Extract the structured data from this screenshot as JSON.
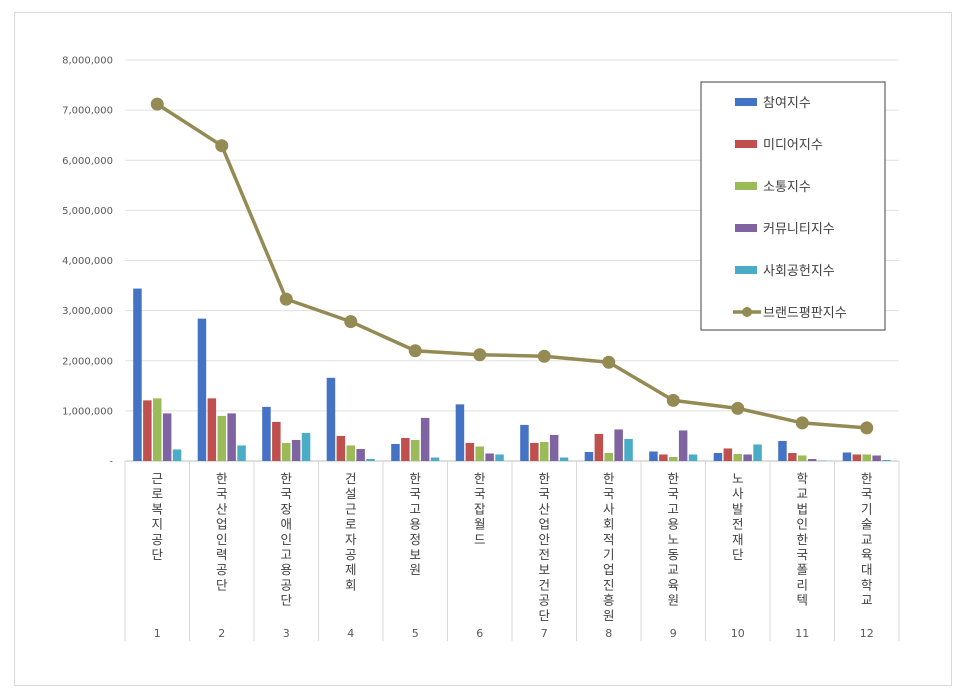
{
  "chart_data": {
    "type": "bar",
    "title": "",
    "xlabel": "",
    "ylabel": "",
    "ylim": [
      0,
      8000000
    ],
    "ytick_labels": [
      "-",
      "1,000,000",
      "2,000,000",
      "3,000,000",
      "4,000,000",
      "5,000,000",
      "6,000,000",
      "7,000,000",
      "8,000,000"
    ],
    "grid": true,
    "legend_position": "top-right",
    "categories": [
      "1",
      "2",
      "3",
      "4",
      "5",
      "6",
      "7",
      "8",
      "9",
      "10",
      "11",
      "12"
    ],
    "category_names": [
      "근로복지공단",
      "한국산업인력공단",
      "한국장애인고용공단",
      "건설근로자공제회",
      "한국고용정보원",
      "한국잡월드",
      "한국산업안전보건공단",
      "한국사회적기업진흥원",
      "한국고용노동교육원",
      "노사발전재단",
      "학교법인한국폴리텍",
      "한국기술교육대학교"
    ],
    "series": [
      {
        "name": "참여지수",
        "kind": "bar",
        "color": "#4472c4",
        "values": [
          3440000,
          2840000,
          1080000,
          1660000,
          340000,
          1130000,
          720000,
          180000,
          190000,
          160000,
          400000,
          170000
        ]
      },
      {
        "name": "미디어지수",
        "kind": "bar",
        "color": "#c0504d",
        "values": [
          1210000,
          1250000,
          780000,
          500000,
          460000,
          360000,
          360000,
          540000,
          130000,
          250000,
          160000,
          130000
        ]
      },
      {
        "name": "소통지수",
        "kind": "bar",
        "color": "#9bbb59",
        "values": [
          1250000,
          900000,
          360000,
          310000,
          420000,
          290000,
          380000,
          160000,
          80000,
          140000,
          110000,
          130000
        ]
      },
      {
        "name": "커뮤니티지수",
        "kind": "bar",
        "color": "#8064a2",
        "values": [
          950000,
          950000,
          420000,
          240000,
          860000,
          150000,
          520000,
          630000,
          610000,
          130000,
          40000,
          110000
        ]
      },
      {
        "name": "사회공헌지수",
        "kind": "bar",
        "color": "#4bacc6",
        "values": [
          230000,
          310000,
          560000,
          40000,
          70000,
          130000,
          70000,
          440000,
          130000,
          330000,
          10000,
          20000
        ]
      },
      {
        "name": "브랜드평판지수",
        "kind": "line",
        "color": "#948a54",
        "values": [
          7120000,
          6290000,
          3230000,
          2780000,
          2200000,
          2120000,
          2090000,
          1970000,
          1210000,
          1050000,
          760000,
          660000
        ]
      }
    ]
  }
}
